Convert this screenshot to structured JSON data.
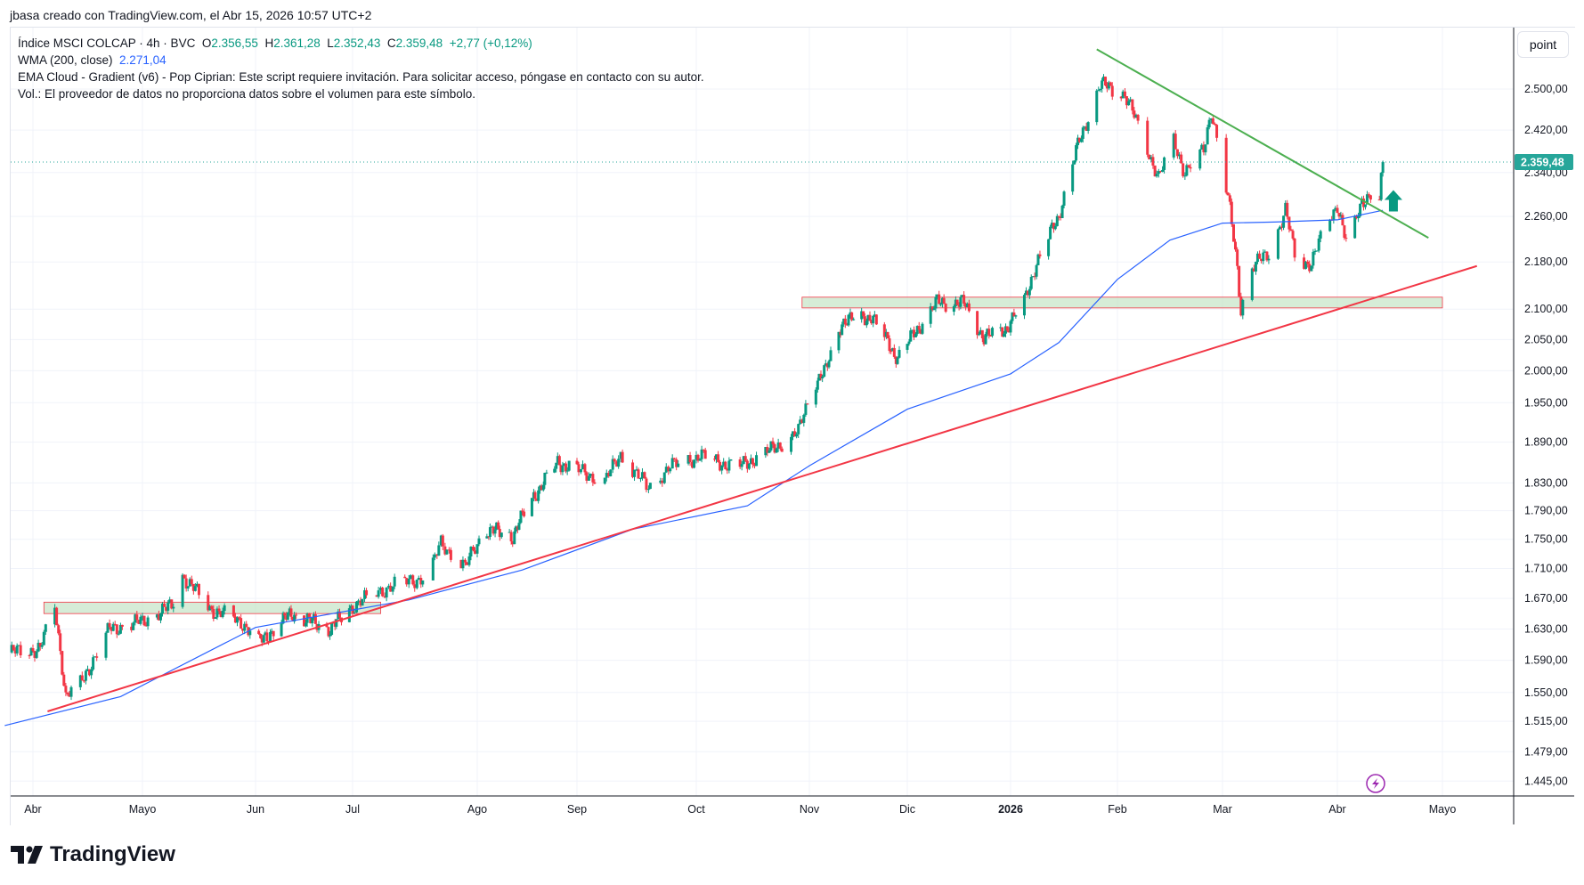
{
  "credit": "jbasa creado con TradingView.com, el Abr 15, 2026 10:57 UTC+2",
  "legend": {
    "symbol": "Índice MSCI COLCAP · 4h · BVC",
    "o_label": "O",
    "o_value": "2.356,55",
    "h_label": "H",
    "h_value": "2.361,28",
    "l_label": "L",
    "l_value": "2.352,43",
    "c_label": "C",
    "c_value": "2.359,48",
    "change": "+2,77 (+0,12%)",
    "wma_label": "WMA (200, close)",
    "wma_value": "2.271,04",
    "ema_cloud": "EMA Cloud - Gradient (v6) - Pop Ciprian: Este script requiere invitación. Para solicitar acceso, póngase en contacto con su autor.",
    "volume": "Vol.: El proveedor de datos no proporciona datos sobre el volumen para este símbolo."
  },
  "price_axis": {
    "unit_button": "point",
    "current_price_label": "2.359,48",
    "ticks": [
      "2.500,00",
      "2.420,00",
      "2.340,00",
      "2.260,00",
      "2.180,00",
      "2.100,00",
      "2.050,00",
      "2.000,00",
      "1.950,00",
      "1.890,00",
      "1.830,00",
      "1.790,00",
      "1.750,00",
      "1.710,00",
      "1.670,00",
      "1.630,00",
      "1.590,00",
      "1.550,00",
      "1.515,00",
      "1.479,00",
      "1.445,00"
    ]
  },
  "time_axis": {
    "labels": [
      "Abr",
      "Mayo",
      "Jun",
      "Jul",
      "Ago",
      "Sep",
      "Oct",
      "Nov",
      "Dic",
      "2026",
      "Feb",
      "Mar",
      "Abr",
      "Mayo"
    ]
  },
  "brand": "TradingView",
  "colors": {
    "up": "#089981",
    "down": "#f23645",
    "wma": "#2962ff",
    "support": "#f23645",
    "resistance": "#4caf50",
    "zone_fill": "#c8e6c9",
    "zone_border": "#f23645",
    "arrow": "#089981",
    "price_tag": "#26a69a"
  },
  "icons": {
    "alert": "lightning-icon",
    "arrow": "arrow-up-icon"
  },
  "chart_data": {
    "type": "candlestick",
    "scale": "log",
    "timeframe": "4h",
    "ylim": [
      1445,
      2560
    ],
    "current_price": 2359.48,
    "price_path": [
      [
        "2025-03-26",
        1600
      ],
      [
        "2025-04-03",
        1605
      ],
      [
        "2025-04-07",
        1660
      ],
      [
        "2025-04-10",
        1545
      ],
      [
        "2025-04-14",
        1560
      ],
      [
        "2025-04-22",
        1630
      ],
      [
        "2025-05-01",
        1640
      ],
      [
        "2025-05-09",
        1660
      ],
      [
        "2025-05-12",
        1700
      ],
      [
        "2025-05-20",
        1655
      ],
      [
        "2025-05-28",
        1640
      ],
      [
        "2025-06-02",
        1612
      ],
      [
        "2025-06-12",
        1650
      ],
      [
        "2025-06-24",
        1630
      ],
      [
        "2025-07-01",
        1660
      ],
      [
        "2025-07-10",
        1685
      ],
      [
        "2025-07-20",
        1700
      ],
      [
        "2025-07-23",
        1745
      ],
      [
        "2025-07-29",
        1712
      ],
      [
        "2025-08-03",
        1765
      ],
      [
        "2025-08-12",
        1755
      ],
      [
        "2025-08-17",
        1800
      ],
      [
        "2025-08-26",
        1860
      ],
      [
        "2025-09-03",
        1845
      ],
      [
        "2025-09-08",
        1832
      ],
      [
        "2025-09-12",
        1872
      ],
      [
        "2025-09-19",
        1822
      ],
      [
        "2025-09-24",
        1852
      ],
      [
        "2025-10-02",
        1870
      ],
      [
        "2025-10-12",
        1852
      ],
      [
        "2025-10-22",
        1880
      ],
      [
        "2025-10-29",
        1905
      ],
      [
        "2025-11-02",
        1980
      ],
      [
        "2025-11-06",
        2000
      ],
      [
        "2025-11-11",
        2080
      ],
      [
        "2025-11-20",
        2088
      ],
      [
        "2025-11-28",
        2020
      ],
      [
        "2025-12-03",
        2060
      ],
      [
        "2025-12-10",
        2112
      ],
      [
        "2025-12-18",
        2110
      ],
      [
        "2025-12-24",
        2052
      ],
      [
        "2025-12-31",
        2070
      ],
      [
        "2026-01-05",
        2112
      ],
      [
        "2026-01-08",
        2170
      ],
      [
        "2026-01-15",
        2262
      ],
      [
        "2026-01-20",
        2380
      ],
      [
        "2026-01-27",
        2510
      ],
      [
        "2026-02-03",
        2490
      ],
      [
        "2026-02-07",
        2420
      ],
      [
        "2026-02-12",
        2330
      ],
      [
        "2026-02-16",
        2400
      ],
      [
        "2026-02-19",
        2340
      ],
      [
        "2026-02-24",
        2380
      ],
      [
        "2026-02-26",
        2460
      ],
      [
        "2026-03-01",
        2350
      ],
      [
        "2026-03-03",
        2270
      ],
      [
        "2026-03-05",
        2170
      ],
      [
        "2026-03-06",
        2100
      ],
      [
        "2026-03-09",
        2170
      ],
      [
        "2026-03-14",
        2200
      ],
      [
        "2026-03-18",
        2270
      ],
      [
        "2026-03-21",
        2180
      ],
      [
        "2026-03-25",
        2178
      ],
      [
        "2026-03-29",
        2245
      ],
      [
        "2026-04-01",
        2282
      ],
      [
        "2026-04-04",
        2200
      ],
      [
        "2026-04-08",
        2290
      ],
      [
        "2026-04-11",
        2300
      ],
      [
        "2026-04-13",
        2285
      ],
      [
        "2026-04-14",
        2359.48
      ]
    ],
    "wma_200": [
      [
        "2025-03-24",
        1510
      ],
      [
        "2025-04-25",
        1545
      ],
      [
        "2025-06-01",
        1632
      ],
      [
        "2025-07-15",
        1668
      ],
      [
        "2025-08-15",
        1708
      ],
      [
        "2025-09-15",
        1764
      ],
      [
        "2025-10-15",
        1797
      ],
      [
        "2025-11-01",
        1855
      ],
      [
        "2025-12-01",
        1940
      ],
      [
        "2026-01-01",
        1995
      ],
      [
        "2026-01-15",
        2045
      ],
      [
        "2026-02-01",
        2150
      ],
      [
        "2026-02-15",
        2218
      ],
      [
        "2026-03-01",
        2248
      ],
      [
        "2026-03-15",
        2250
      ],
      [
        "2026-04-01",
        2254
      ],
      [
        "2026-04-14",
        2271
      ]
    ],
    "support_line": [
      [
        "2025-04-05",
        1527
      ],
      [
        "2026-05-11",
        2173
      ]
    ],
    "resistance_line": [
      [
        "2026-01-26",
        2580
      ],
      [
        "2026-04-27",
        2222
      ]
    ],
    "zones": [
      {
        "from": "2025-04-04",
        "to": "2025-07-08",
        "low": 1650,
        "high": 1665
      },
      {
        "from": "2025-10-30",
        "to": "2026-05-01",
        "low": 2102,
        "high": 2120
      }
    ],
    "arrow_marker": {
      "date": "2026-04-17",
      "price": 2285,
      "direction": "up"
    }
  }
}
